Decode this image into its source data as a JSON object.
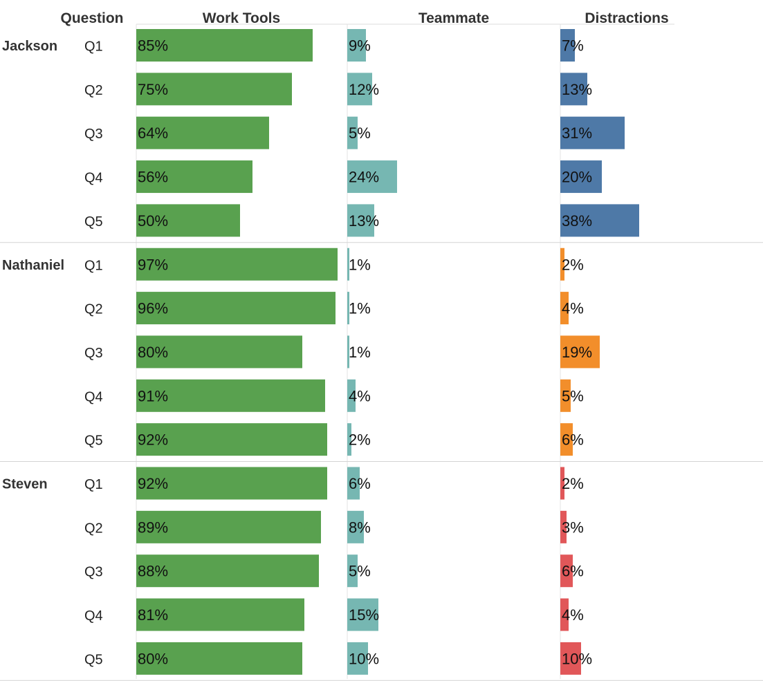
{
  "chart_data": {
    "type": "bar",
    "orientation": "horizontal",
    "header": {
      "row_label": "Question",
      "columns": [
        "Work Tools",
        "Teammate",
        "Distractions"
      ]
    },
    "value_format": "percent",
    "panel_ranges": [
      [
        0,
        100
      ],
      [
        0,
        100
      ],
      [
        0,
        100
      ]
    ],
    "groups": [
      {
        "name": "Jackson",
        "questions": [
          "Q1",
          "Q2",
          "Q3",
          "Q4",
          "Q5"
        ],
        "work_tools": [
          85,
          75,
          64,
          56,
          50
        ],
        "teammate": [
          9,
          12,
          5,
          24,
          13
        ],
        "distractions": [
          7,
          13,
          31,
          20,
          38
        ],
        "distraction_color": "#4e79a7"
      },
      {
        "name": "Nathaniel",
        "questions": [
          "Q1",
          "Q2",
          "Q3",
          "Q4",
          "Q5"
        ],
        "work_tools": [
          97,
          96,
          80,
          91,
          92
        ],
        "teammate": [
          1,
          1,
          1,
          4,
          2
        ],
        "distractions": [
          2,
          4,
          19,
          5,
          6
        ],
        "distraction_color": "#f28e2b"
      },
      {
        "name": "Steven",
        "questions": [
          "Q1",
          "Q2",
          "Q3",
          "Q4",
          "Q5"
        ],
        "work_tools": [
          92,
          89,
          88,
          81,
          80
        ],
        "teammate": [
          6,
          8,
          5,
          15,
          10
        ],
        "distractions": [
          2,
          3,
          6,
          4,
          10
        ],
        "distraction_color": "#e15759"
      }
    ],
    "colors": {
      "work_tools": "#59a14f",
      "teammate": "#76b7b2"
    }
  }
}
